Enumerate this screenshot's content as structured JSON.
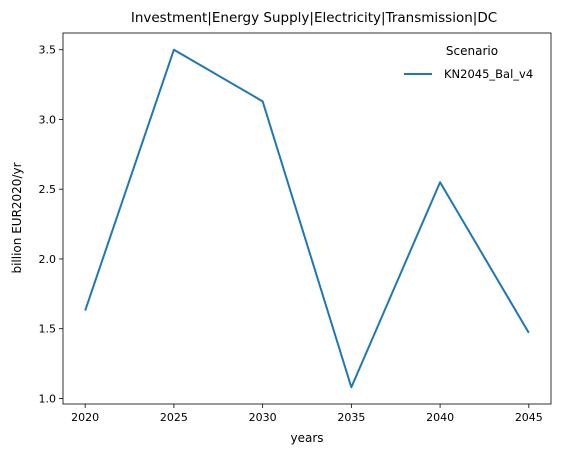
{
  "chart_data": {
    "type": "line",
    "title": "Investment|Energy Supply|Electricity|Transmission|DC",
    "xlabel": "years",
    "ylabel": "billion EUR2020/yr",
    "x": [
      2020,
      2025,
      2030,
      2035,
      2040,
      2045
    ],
    "xticks": [
      "2020",
      "2025",
      "2030",
      "2035",
      "2040",
      "2045"
    ],
    "yticks": [
      "1.0",
      "1.5",
      "2.0",
      "2.5",
      "3.0",
      "3.5"
    ],
    "ytick_values": [
      1.0,
      1.5,
      2.0,
      2.5,
      3.0,
      3.5
    ],
    "xlim": [
      2018.75,
      2046.25
    ],
    "ylim": [
      0.96,
      3.62
    ],
    "grid": false,
    "legend": {
      "title": "Scenario",
      "placement": "top-right"
    },
    "series": [
      {
        "name": "KN2045_Bal_v4",
        "color": "#1f77b4",
        "values": [
          1.63,
          3.5,
          3.13,
          1.08,
          2.55,
          1.47
        ]
      }
    ]
  }
}
